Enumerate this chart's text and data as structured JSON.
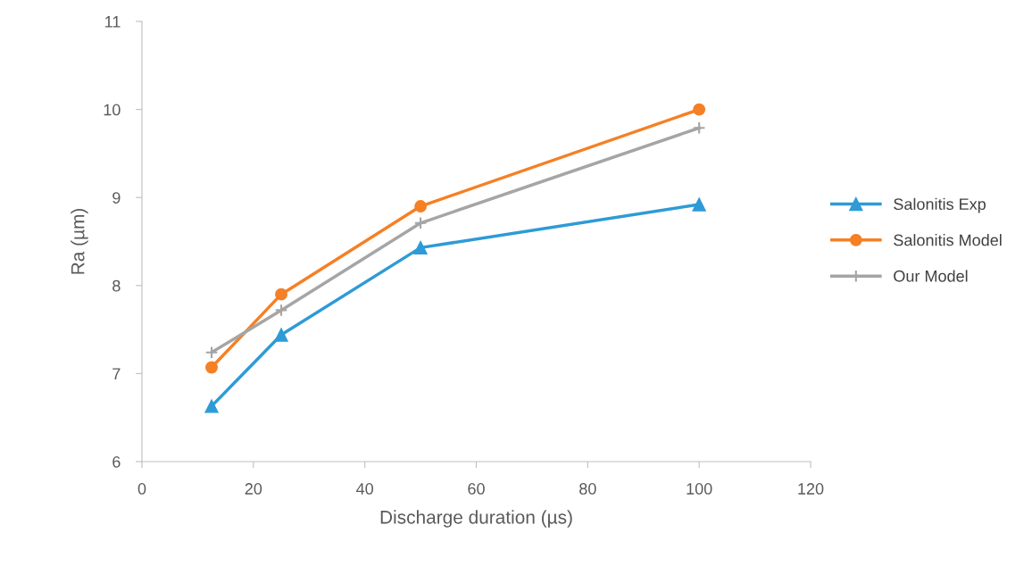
{
  "chart_data": {
    "type": "line",
    "xlabel": "Discharge duration (µs)",
    "ylabel": "Ra (µm)",
    "x": [
      12.5,
      25,
      50,
      100
    ],
    "series": [
      {
        "name": "Salonitis Exp",
        "color": "#2e9bd6",
        "marker": "triangle",
        "values": [
          6.63,
          7.44,
          8.43,
          8.92
        ]
      },
      {
        "name": "Salonitis Model",
        "color": "#f58025",
        "marker": "circle",
        "values": [
          7.07,
          7.9,
          8.9,
          10.0
        ]
      },
      {
        "name": "Our Model",
        "color": "#a5a5a5",
        "marker": "cross",
        "values": [
          7.24,
          7.72,
          8.71,
          9.79
        ]
      }
    ],
    "xlim": [
      0,
      120
    ],
    "xticks": [
      0,
      20,
      40,
      60,
      80,
      100,
      120
    ],
    "ylim": [
      6,
      11
    ],
    "yticks": [
      6,
      7,
      8,
      9,
      10,
      11
    ],
    "grid": false,
    "legend": "right",
    "line_style": "solid"
  }
}
